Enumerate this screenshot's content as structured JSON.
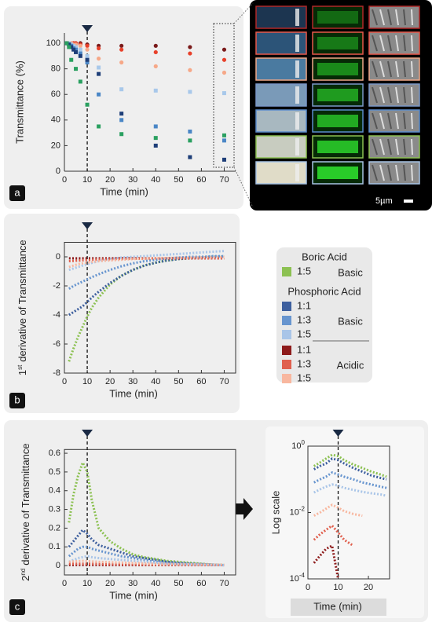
{
  "chart_data": [
    {
      "type": "scatter",
      "panel_label": "a",
      "x_label": "Time (min)",
      "y_label": "Transmittance (%)",
      "xlim": [
        0,
        75
      ],
      "xticks": [
        0,
        10,
        20,
        30,
        40,
        50,
        60,
        70
      ],
      "ylim": [
        0,
        108
      ],
      "yticks": [
        0,
        20,
        40,
        60,
        80,
        100
      ],
      "vline": 10,
      "x": [
        1,
        2,
        3,
        4,
        5,
        7,
        10,
        15,
        25,
        40,
        55,
        70
      ],
      "series": [
        {
          "color": "#7a1a1a",
          "marker": "circle",
          "values": [
            100,
            100,
            100,
            100,
            100,
            100,
            99,
            98,
            98,
            98,
            97,
            95
          ]
        },
        {
          "color": "#e8402a",
          "marker": "circle",
          "values": [
            100,
            100,
            100,
            100,
            100,
            99,
            98,
            96,
            95,
            93,
            92,
            87
          ]
        },
        {
          "color": "#f6a888",
          "marker": "circle",
          "values": [
            100,
            100,
            100,
            99,
            99,
            98,
            95,
            88,
            85,
            82,
            79,
            77
          ]
        },
        {
          "color": "#a8c8ea",
          "marker": "square",
          "values": [
            100,
            100,
            99,
            98,
            97,
            95,
            90,
            81,
            64,
            63,
            62,
            61
          ]
        },
        {
          "color": "#4a86c6",
          "marker": "square",
          "values": [
            100,
            99,
            98,
            96,
            95,
            92,
            85,
            60,
            40,
            35,
            31,
            24
          ]
        },
        {
          "color": "#1e3e78",
          "marker": "square",
          "values": [
            100,
            99,
            97,
            95,
            93,
            90,
            87,
            76,
            45,
            20,
            11,
            9
          ]
        },
        {
          "color": "#2aa060",
          "marker": "square",
          "values": [
            100,
            97,
            87,
            null,
            80,
            70,
            52,
            35,
            29,
            26,
            24,
            28
          ]
        }
      ]
    },
    {
      "type": "line",
      "panel_label": "b",
      "x_label": "Time (min)",
      "y_label": {
        "base": "1",
        "sup": "st",
        "text": "derivative of Transmittance"
      },
      "frame": true,
      "xlim": [
        0,
        75
      ],
      "xticks": [
        0,
        10,
        20,
        30,
        40,
        50,
        60,
        70
      ],
      "ylim": [
        -8,
        1
      ],
      "yticks": [
        -8,
        -6,
        -4,
        -2,
        0
      ],
      "vline": 10,
      "x": [
        2,
        4,
        6,
        8,
        10,
        12,
        15,
        20,
        25,
        30,
        35,
        40,
        45,
        50,
        55,
        60,
        65,
        70
      ],
      "series": [
        {
          "name": "1:5",
          "group": "Boric Acid",
          "subgroup": "Basic",
          "color": "#8cc152",
          "values": [
            -7.2,
            -6.3,
            -5.5,
            -4.8,
            -4.1,
            -3.5,
            -2.8,
            -1.9,
            -1.3,
            -0.9,
            -0.6,
            -0.4,
            -0.25,
            -0.15,
            -0.1,
            -0.05,
            0,
            0
          ]
        },
        {
          "name": "1:1",
          "group": "Phosphoric Acid",
          "subgroup": "Basic",
          "color": "#3d5f9e",
          "values": [
            -4.0,
            -3.8,
            -3.6,
            -3.4,
            -3.1,
            -2.8,
            -2.4,
            -1.8,
            -1.3,
            -0.9,
            -0.6,
            -0.4,
            -0.25,
            -0.15,
            -0.1,
            -0.05,
            0,
            0
          ]
        },
        {
          "name": "1:3",
          "group": "Phosphoric Acid",
          "subgroup": "Basic",
          "color": "#6795cf",
          "values": [
            -2.2,
            -2.0,
            -1.85,
            -1.7,
            -1.55,
            -1.4,
            -1.2,
            -0.9,
            -0.65,
            -0.45,
            -0.3,
            -0.2,
            -0.1,
            -0.05,
            0,
            0,
            0.05,
            0.05
          ]
        },
        {
          "name": "1:5",
          "group": "Phosphoric Acid",
          "subgroup": "Basic",
          "color": "#a9c5e8",
          "values": [
            -0.9,
            -0.8,
            -0.7,
            -0.6,
            -0.5,
            -0.42,
            -0.3,
            -0.15,
            -0.05,
            0,
            0.05,
            0.1,
            0.15,
            0.2,
            0.25,
            0.3,
            0.35,
            0.4
          ]
        },
        {
          "name": "1:1",
          "group": "Phosphoric Acid",
          "subgroup": "Acidic",
          "color": "#8e1b1b",
          "values": [
            -0.1,
            -0.1,
            -0.1,
            -0.1,
            -0.1,
            -0.1,
            -0.1,
            -0.1,
            -0.1,
            -0.1,
            -0.1,
            -0.1,
            -0.1,
            -0.1,
            -0.1,
            -0.1,
            -0.1,
            -0.1
          ]
        },
        {
          "name": "1:3",
          "group": "Phosphoric Acid",
          "subgroup": "Acidic",
          "color": "#e0604e",
          "values": [
            -0.3,
            -0.28,
            -0.26,
            -0.24,
            -0.22,
            -0.2,
            -0.18,
            -0.16,
            -0.14,
            -0.13,
            -0.12,
            -0.11,
            -0.1,
            -0.1,
            -0.1,
            -0.1,
            -0.1,
            -0.1
          ]
        },
        {
          "name": "1:5",
          "group": "Phosphoric Acid",
          "subgroup": "Acidic",
          "color": "#f8b79f",
          "values": [
            -0.7,
            -0.6,
            -0.5,
            -0.45,
            -0.4,
            -0.35,
            -0.3,
            -0.25,
            -0.2,
            -0.15,
            -0.12,
            -0.1,
            -0.08,
            -0.06,
            -0.05,
            -0.04,
            -0.03,
            -0.02
          ]
        }
      ]
    },
    {
      "type": "line",
      "panel_label": "c",
      "x_label": "Time (min)",
      "y_label": {
        "base": "2",
        "sup": "nd",
        "text": "derivative of Transmittance"
      },
      "frame": true,
      "xlim": [
        0,
        75
      ],
      "xticks": [
        0,
        10,
        20,
        30,
        40,
        50,
        60,
        70
      ],
      "ylim": [
        -0.05,
        0.62
      ],
      "yticks": [
        0,
        0.1,
        0.2,
        0.3,
        0.4,
        0.5,
        0.6
      ],
      "vline": 10,
      "x": [
        2,
        4,
        6,
        8,
        10,
        12,
        15,
        20,
        25,
        30,
        35,
        40,
        45,
        50,
        55,
        60,
        65,
        70
      ],
      "series": [
        {
          "color": "#8cc152",
          "values": [
            0.23,
            0.38,
            0.48,
            0.55,
            0.5,
            0.35,
            0.2,
            0.13,
            0.09,
            0.06,
            0.045,
            0.035,
            0.025,
            0.02,
            0.015,
            0.01,
            0.005,
            0.003
          ]
        },
        {
          "color": "#3d5f9e",
          "values": [
            0.1,
            0.13,
            0.16,
            0.19,
            0.17,
            0.14,
            0.11,
            0.09,
            0.07,
            0.05,
            0.04,
            0.03,
            0.02,
            0.015,
            0.01,
            0.008,
            0.005,
            0.003
          ]
        },
        {
          "color": "#6795cf",
          "values": [
            0.05,
            0.07,
            0.09,
            0.1,
            0.1,
            0.09,
            0.08,
            0.065,
            0.05,
            0.04,
            0.03,
            0.02,
            0.015,
            0.01,
            0.008,
            0.006,
            0.004,
            0.002
          ]
        },
        {
          "color": "#a9c5e8",
          "values": [
            0.02,
            0.03,
            0.04,
            0.045,
            0.05,
            0.045,
            0.04,
            0.035,
            0.03,
            0.025,
            0.02,
            0.015,
            0.01,
            0.008,
            0.006,
            0.004,
            0.003,
            0.002
          ]
        },
        {
          "color": "#8e1b1b",
          "values": [
            0.003,
            0.003,
            0.003,
            0.003,
            0.003,
            0.003,
            0.003,
            0.003,
            0.003,
            0.003,
            0.003,
            0.003,
            0.003,
            0.003,
            0.003,
            0.003,
            0.003,
            0.003
          ]
        },
        {
          "color": "#e0604e",
          "values": [
            0.01,
            0.01,
            0.01,
            0.01,
            0.01,
            0.009,
            0.009,
            0.008,
            0.008,
            0.007,
            0.006,
            0.005,
            0.005,
            0.004,
            0.004,
            0.003,
            0.003,
            0.003
          ]
        },
        {
          "color": "#f8b79f",
          "values": [
            0.02,
            0.022,
            0.024,
            0.025,
            0.024,
            0.022,
            0.02,
            0.018,
            0.016,
            0.014,
            0.012,
            0.01,
            0.009,
            0.008,
            0.007,
            0.006,
            0.005,
            0.004
          ]
        }
      ]
    },
    {
      "type": "line",
      "x_label": "Time (min)",
      "y_label": "Log scale",
      "frame": true,
      "log_scale_y": true,
      "xlim": [
        0,
        27
      ],
      "xticks": [
        0,
        10,
        20
      ],
      "ylim": [
        0.0001,
        1
      ],
      "yticks": [
        {
          "value": 0.0001,
          "label": "10",
          "superscript": "-4"
        },
        {
          "value": 0.01,
          "label": "10",
          "superscript": "-2"
        },
        {
          "value": 1,
          "label": "10",
          "superscript": "0"
        }
      ],
      "vline": 10,
      "x": [
        2,
        4,
        6,
        8,
        10,
        12,
        15,
        18,
        21,
        24,
        26
      ],
      "series": [
        {
          "color": "#8cc152",
          "values": [
            0.25,
            0.32,
            0.42,
            0.55,
            0.5,
            0.38,
            0.28,
            0.22,
            0.17,
            0.14,
            0.12
          ]
        },
        {
          "color": "#3d5f9e",
          "values": [
            0.2,
            0.25,
            0.3,
            0.42,
            0.38,
            0.3,
            0.22,
            0.17,
            0.13,
            0.11,
            0.1
          ]
        },
        {
          "color": "#6795cf",
          "values": [
            0.08,
            0.1,
            0.12,
            0.16,
            0.14,
            0.12,
            0.1,
            0.08,
            0.07,
            0.06,
            0.055
          ]
        },
        {
          "color": "#a9c5e8",
          "values": [
            0.04,
            0.05,
            0.06,
            0.07,
            0.065,
            0.055,
            0.048,
            0.042,
            0.038,
            0.035,
            0.032
          ]
        },
        {
          "color": "#f8b79f",
          "values": [
            0.008,
            0.01,
            0.013,
            0.017,
            0.014,
            0.011,
            0.009,
            0.008,
            null,
            null,
            null
          ]
        },
        {
          "color": "#e0604e",
          "values": [
            0.0015,
            0.0022,
            0.003,
            0.004,
            0.0025,
            0.0015,
            0.001,
            null,
            null,
            null,
            null
          ]
        },
        {
          "color": "#8e1b1b",
          "values": [
            0.0003,
            0.0005,
            0.0008,
            0.001,
            0.0001,
            null,
            null,
            null,
            null,
            null,
            null
          ]
        }
      ]
    }
  ],
  "image_panel": {
    "scale_bar_label": "5µm"
  }
}
